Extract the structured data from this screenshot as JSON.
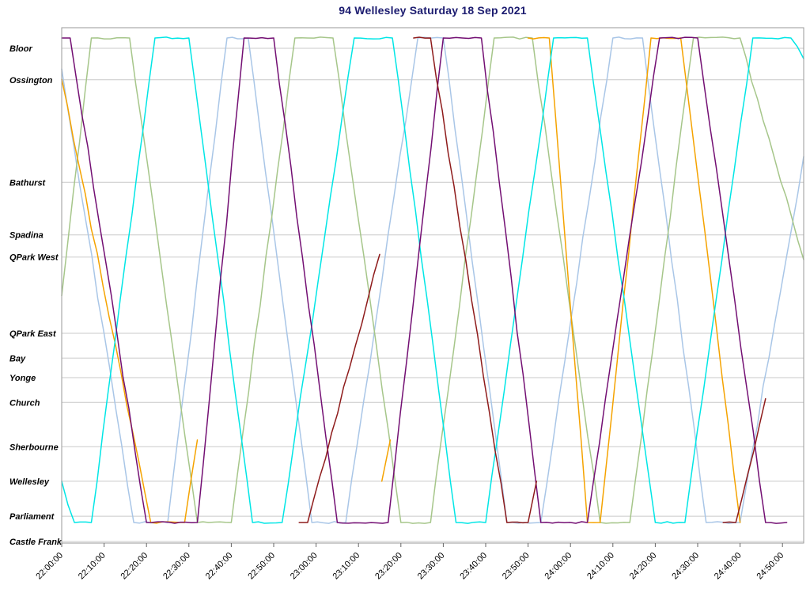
{
  "title": "94 Wellesley Saturday 18 Sep 2021",
  "chart_data": {
    "type": "line",
    "title": "94 Wellesley Saturday 18 Sep 2021",
    "description": "Time-distance (Marey) chart of vehicle movements on route 94 Wellesley; y axis = stops from Bloor (top) to Castle Frank (bottom), x axis = time of day",
    "grid_color": "#c9c9c9",
    "frame_color": "#9a9a9a",
    "x_axis": {
      "start_min": 0,
      "end_min": 175,
      "tick_interval_min": 10,
      "tick_labels": [
        "22:00:00",
        "22:10:00",
        "22:20:00",
        "22:30:00",
        "22:40:00",
        "22:50:00",
        "23:00:00",
        "23:10:00",
        "23:20:00",
        "23:30:00",
        "23:40:00",
        "23:50:00",
        "24:00:00",
        "24:10:00",
        "24:20:00",
        "24:30:00",
        "24:40:00",
        "24:50:00"
      ]
    },
    "y_axis": {
      "orientation": "0 = Bloor terminal (top), 1 = Castle Frank (bottom)",
      "stations": [
        {
          "name": "Bloor",
          "pos": 0.04
        },
        {
          "name": "Ossington",
          "pos": 0.101
        },
        {
          "name": "Bathurst",
          "pos": 0.3
        },
        {
          "name": "Spadina",
          "pos": 0.402
        },
        {
          "name": "QPark West",
          "pos": 0.445
        },
        {
          "name": "QPark East",
          "pos": 0.593
        },
        {
          "name": "Bay",
          "pos": 0.641
        },
        {
          "name": "Yonge",
          "pos": 0.679
        },
        {
          "name": "Church",
          "pos": 0.727
        },
        {
          "name": "Sherbourne",
          "pos": 0.813
        },
        {
          "name": "Wellesley",
          "pos": 0.88
        },
        {
          "name": "Parliament",
          "pos": 0.948
        },
        {
          "name": "Castle Frank",
          "pos": 0.997
        }
      ]
    },
    "series": [
      {
        "name": "vehicle-light-blue",
        "color": "#a9c6e7",
        "runs": [
          [
            [
              0,
              0.08
            ],
            [
              17,
              0.96
            ],
            [
              25,
              0.96
            ],
            [
              39,
              0.02
            ],
            [
              44,
              0.02
            ],
            [
              59,
              0.96
            ],
            [
              67,
              0.96
            ],
            [
              84,
              0.02
            ],
            [
              90,
              0.02
            ],
            [
              105,
              0.96
            ],
            [
              113,
              0.96
            ],
            [
              130,
              0.02
            ],
            [
              137,
              0.02
            ],
            [
              152,
              0.96
            ],
            [
              160,
              0.96
            ],
            [
              175,
              0.25
            ]
          ]
        ]
      },
      {
        "name": "vehicle-green",
        "color": "#a6c68a",
        "runs": [
          [
            [
              0,
              0.52
            ],
            [
              7,
              0.02
            ],
            [
              16,
              0.02
            ],
            [
              32,
              0.96
            ],
            [
              40,
              0.96
            ],
            [
              55,
              0.02
            ],
            [
              64,
              0.02
            ],
            [
              80,
              0.96
            ],
            [
              87,
              0.96
            ],
            [
              102,
              0.02
            ],
            [
              111,
              0.02
            ],
            [
              127,
              0.96
            ],
            [
              134,
              0.96
            ],
            [
              149,
              0.02
            ],
            [
              160,
              0.02
            ],
            [
              175,
              0.45
            ]
          ]
        ]
      },
      {
        "name": "vehicle-orange",
        "color": "#f5a300",
        "runs": [
          [
            [
              0,
              0.1
            ],
            [
              21,
              0.96
            ],
            [
              29,
              0.96
            ],
            [
              32,
              0.8
            ]
          ],
          [
            [
              75.5,
              0.88
            ],
            [
              77.5,
              0.8
            ]
          ],
          [
            [
              110,
              0.02
            ],
            [
              115,
              0.02
            ],
            [
              124,
              0.96
            ],
            [
              127,
              0.96
            ],
            [
              139,
              0.02
            ],
            [
              146,
              0.02
            ],
            [
              160,
              0.96
            ]
          ]
        ]
      },
      {
        "name": "vehicle-cyan",
        "color": "#00e6e6",
        "runs": [
          [
            [
              0,
              0.88
            ],
            [
              3,
              0.96
            ],
            [
              7,
              0.96
            ],
            [
              22,
              0.02
            ],
            [
              30,
              0.02
            ],
            [
              45,
              0.96
            ],
            [
              52,
              0.96
            ],
            [
              69,
              0.02
            ],
            [
              78,
              0.02
            ],
            [
              93,
              0.96
            ],
            [
              100,
              0.96
            ],
            [
              116,
              0.02
            ],
            [
              124,
              0.02
            ],
            [
              140,
              0.96
            ],
            [
              147,
              0.96
            ],
            [
              163,
              0.02
            ],
            [
              172,
              0.02
            ],
            [
              175,
              0.06
            ]
          ]
        ]
      },
      {
        "name": "vehicle-purple",
        "color": "#730f73",
        "runs": [
          [
            [
              0,
              0.02
            ],
            [
              2,
              0.02
            ],
            [
              20,
              0.96
            ],
            [
              32,
              0.96
            ],
            [
              43,
              0.02
            ],
            [
              50,
              0.02
            ],
            [
              65,
              0.96
            ],
            [
              77,
              0.96
            ],
            [
              90,
              0.02
            ],
            [
              99,
              0.02
            ],
            [
              113,
              0.96
            ],
            [
              124,
              0.96
            ],
            [
              141,
              0.02
            ],
            [
              150,
              0.02
            ],
            [
              166,
              0.96
            ],
            [
              171,
              0.96
            ]
          ]
        ]
      },
      {
        "name": "vehicle-dark-red",
        "color": "#8e1b1b",
        "runs": [
          [
            [
              56,
              0.96
            ],
            [
              58,
              0.96
            ],
            [
              75,
              0.44
            ]
          ],
          [
            [
              83,
              0.02
            ],
            [
              87,
              0.02
            ],
            [
              105,
              0.96
            ],
            [
              110,
              0.96
            ],
            [
              112,
              0.88
            ]
          ],
          [
            [
              156,
              0.96
            ],
            [
              159,
              0.96
            ],
            [
              166,
              0.72
            ]
          ]
        ]
      }
    ]
  }
}
